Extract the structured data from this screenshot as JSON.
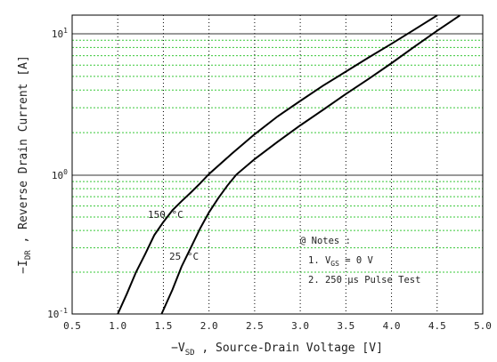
{
  "chart_data": {
    "type": "line",
    "title": "",
    "xlabel": {
      "prefix": "−V",
      "sub": "SD",
      "suffix": " , Source-Drain Voltage  [V]"
    },
    "ylabel": {
      "prefix": "−I",
      "sub": "DR",
      "suffix": " , Reverse Drain Current  [A]"
    },
    "xlim": [
      0.5,
      5.0
    ],
    "ylim": [
      0.1,
      14
    ],
    "yscale": "log",
    "grid": true,
    "x_ticks": [
      "0.5",
      "1.0",
      "1.5",
      "2.0",
      "2.5",
      "3.0",
      "3.5",
      "4.0",
      "4.5",
      "5.0"
    ],
    "y_ticks": [
      {
        "base": "10",
        "exp": "-1",
        "value": 0.1
      },
      {
        "base": "10",
        "exp": "0",
        "value": 1
      },
      {
        "base": "10",
        "exp": "1",
        "value": 10
      }
    ],
    "series": [
      {
        "name": "150 °C",
        "color": "#000000",
        "points": [
          [
            1.0,
            0.1
          ],
          [
            1.1,
            0.14
          ],
          [
            1.2,
            0.2
          ],
          [
            1.3,
            0.27
          ],
          [
            1.4,
            0.37
          ],
          [
            1.5,
            0.46
          ],
          [
            1.6,
            0.56
          ],
          [
            1.7,
            0.65
          ],
          [
            1.8,
            0.75
          ],
          [
            1.9,
            0.87
          ],
          [
            2.0,
            1.02
          ],
          [
            2.25,
            1.42
          ],
          [
            2.5,
            1.95
          ],
          [
            2.75,
            2.6
          ],
          [
            3.0,
            3.35
          ],
          [
            3.25,
            4.3
          ],
          [
            3.5,
            5.4
          ],
          [
            3.75,
            6.8
          ],
          [
            4.0,
            8.5
          ],
          [
            4.25,
            10.7
          ],
          [
            4.5,
            13.5
          ]
        ]
      },
      {
        "name": "25 °C",
        "color": "#000000",
        "points": [
          [
            1.48,
            0.1
          ],
          [
            1.6,
            0.15
          ],
          [
            1.7,
            0.22
          ],
          [
            1.8,
            0.3
          ],
          [
            1.9,
            0.41
          ],
          [
            2.0,
            0.54
          ],
          [
            2.1,
            0.68
          ],
          [
            2.2,
            0.84
          ],
          [
            2.3,
            1.01
          ],
          [
            2.5,
            1.3
          ],
          [
            2.75,
            1.72
          ],
          [
            3.0,
            2.25
          ],
          [
            3.25,
            2.9
          ],
          [
            3.5,
            3.75
          ],
          [
            3.75,
            4.8
          ],
          [
            4.0,
            6.2
          ],
          [
            4.25,
            8.1
          ],
          [
            4.5,
            10.5
          ],
          [
            4.75,
            13.5
          ]
        ]
      }
    ],
    "notes": {
      "title": "@ Notes :",
      "line1": {
        "prefix": "1. V",
        "sub": "GS",
        "suffix": " = 0 V"
      },
      "line2": "2. 250 μs Pulse Test"
    },
    "colors": {
      "major_grid": "#333333",
      "minor_grid": "#39c839",
      "vertical_grid": "#000000"
    }
  }
}
